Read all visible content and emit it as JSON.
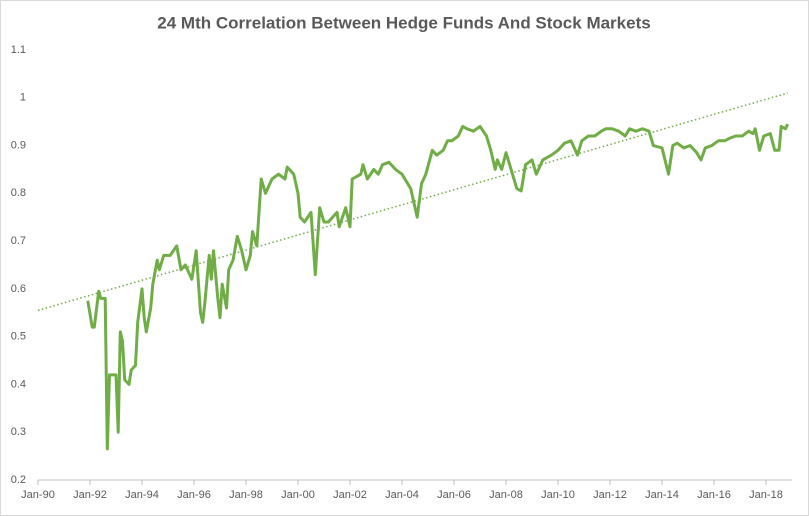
{
  "chart_data": {
    "type": "line",
    "title": "24 Mth Correlation Between Hedge Funds And Stock Markets",
    "color": "#70ad47",
    "x": [
      "1991-12",
      "1992-02",
      "1992-03",
      "1992-05",
      "1992-06",
      "1992-08",
      "1992-09",
      "1992-10",
      "1992-11",
      "1993-01",
      "1993-02",
      "1993-03",
      "1993-04",
      "1993-05",
      "1993-07",
      "1993-08",
      "1993-10",
      "1993-11",
      "1994-01",
      "1994-02",
      "1994-03",
      "1994-05",
      "1994-06",
      "1994-08",
      "1994-09",
      "1994-11",
      "1995-02",
      "1995-05",
      "1995-07",
      "1995-09",
      "1995-12",
      "1996-02",
      "1996-04",
      "1996-05",
      "1996-06",
      "1996-08",
      "1996-09",
      "1996-10",
      "1996-12",
      "1997-01",
      "1997-02",
      "1997-04",
      "1997-05",
      "1997-07",
      "1997-09",
      "1997-11",
      "1998-01",
      "1998-03",
      "1998-04",
      "1998-06",
      "1998-08",
      "1998-10",
      "1999-01",
      "1999-04",
      "1999-07",
      "1999-08",
      "1999-11",
      "2000-01",
      "2000-02",
      "2000-04",
      "2000-07",
      "2000-09",
      "2000-11",
      "2001-01",
      "2001-03",
      "2001-07",
      "2001-08",
      "2001-11",
      "2002-01",
      "2002-02",
      "2002-06",
      "2002-07",
      "2002-09",
      "2002-12",
      "2003-02",
      "2003-04",
      "2003-07",
      "2003-10",
      "2004-01",
      "2004-05",
      "2004-08",
      "2004-10",
      "2004-12",
      "2005-03",
      "2005-05",
      "2005-08",
      "2005-10",
      "2005-12",
      "2006-03",
      "2006-05",
      "2006-07",
      "2006-10",
      "2007-01",
      "2007-04",
      "2007-06",
      "2007-08",
      "2007-09",
      "2007-11",
      "2008-01",
      "2008-04",
      "2008-06",
      "2008-08",
      "2008-10",
      "2009-01",
      "2009-03",
      "2009-06",
      "2009-10",
      "2010-01",
      "2010-04",
      "2010-07",
      "2010-10",
      "2010-12",
      "2011-03",
      "2011-06",
      "2011-09",
      "2011-11",
      "2012-02",
      "2012-05",
      "2012-08",
      "2012-10",
      "2013-01",
      "2013-04",
      "2013-07",
      "2013-09",
      "2014-01",
      "2014-04",
      "2014-06",
      "2014-08",
      "2014-11",
      "2015-02",
      "2015-05",
      "2015-07",
      "2015-09",
      "2015-12",
      "2016-03",
      "2016-06",
      "2016-08",
      "2016-11",
      "2017-02",
      "2017-05",
      "2017-07",
      "2017-08",
      "2017-10",
      "2017-12",
      "2018-03",
      "2018-05",
      "2018-07",
      "2018-08",
      "2018-10",
      "2018-11"
    ],
    "values": [
      0.575,
      0.52,
      0.52,
      0.595,
      0.58,
      0.58,
      0.265,
      0.42,
      0.42,
      0.42,
      0.3,
      0.51,
      0.49,
      0.41,
      0.4,
      0.43,
      0.44,
      0.53,
      0.6,
      0.54,
      0.51,
      0.56,
      0.61,
      0.66,
      0.64,
      0.67,
      0.67,
      0.69,
      0.64,
      0.65,
      0.62,
      0.68,
      0.55,
      0.53,
      0.57,
      0.67,
      0.62,
      0.68,
      0.58,
      0.54,
      0.61,
      0.56,
      0.64,
      0.66,
      0.71,
      0.68,
      0.64,
      0.67,
      0.72,
      0.69,
      0.83,
      0.8,
      0.83,
      0.84,
      0.83,
      0.855,
      0.84,
      0.8,
      0.75,
      0.74,
      0.76,
      0.63,
      0.77,
      0.74,
      0.74,
      0.76,
      0.73,
      0.77,
      0.73,
      0.83,
      0.84,
      0.86,
      0.83,
      0.85,
      0.84,
      0.86,
      0.865,
      0.85,
      0.84,
      0.81,
      0.75,
      0.82,
      0.84,
      0.89,
      0.88,
      0.89,
      0.91,
      0.91,
      0.92,
      0.94,
      0.935,
      0.93,
      0.94,
      0.92,
      0.89,
      0.85,
      0.87,
      0.85,
      0.885,
      0.84,
      0.81,
      0.805,
      0.86,
      0.87,
      0.84,
      0.87,
      0.88,
      0.89,
      0.905,
      0.91,
      0.88,
      0.91,
      0.92,
      0.92,
      0.93,
      0.935,
      0.935,
      0.93,
      0.92,
      0.935,
      0.93,
      0.935,
      0.93,
      0.9,
      0.895,
      0.84,
      0.9,
      0.905,
      0.895,
      0.9,
      0.885,
      0.87,
      0.895,
      0.9,
      0.91,
      0.91,
      0.915,
      0.92,
      0.92,
      0.93,
      0.925,
      0.935,
      0.89,
      0.92,
      0.925,
      0.89,
      0.89,
      0.94,
      0.935,
      0.945
    ],
    "trendline": {
      "x": [
        "1990-01",
        "2018-11"
      ],
      "values": [
        0.555,
        1.01
      ]
    },
    "xlim": [
      "1990-01",
      "2019-01"
    ],
    "xticks": [
      {
        "value": "1990-01",
        "label": "Jan-90"
      },
      {
        "value": "1992-01",
        "label": "Jan-92"
      },
      {
        "value": "1994-01",
        "label": "Jan-94"
      },
      {
        "value": "1996-01",
        "label": "Jan-96"
      },
      {
        "value": "1998-01",
        "label": "Jan-98"
      },
      {
        "value": "2000-01",
        "label": "Jan-00"
      },
      {
        "value": "2002-01",
        "label": "Jan-02"
      },
      {
        "value": "2004-01",
        "label": "Jan-04"
      },
      {
        "value": "2006-01",
        "label": "Jan-06"
      },
      {
        "value": "2008-01",
        "label": "Jan-08"
      },
      {
        "value": "2010-01",
        "label": "Jan-10"
      },
      {
        "value": "2012-01",
        "label": "Jan-12"
      },
      {
        "value": "2014-01",
        "label": "Jan-14"
      },
      {
        "value": "2016-01",
        "label": "Jan-16"
      },
      {
        "value": "2018-01",
        "label": "Jan-18"
      }
    ],
    "ylim": [
      0.2,
      1.1
    ],
    "yticks": [
      0.2,
      0.3,
      0.4,
      0.5,
      0.6,
      0.7,
      0.8,
      0.9,
      1,
      1.1
    ],
    "grid": false
  }
}
